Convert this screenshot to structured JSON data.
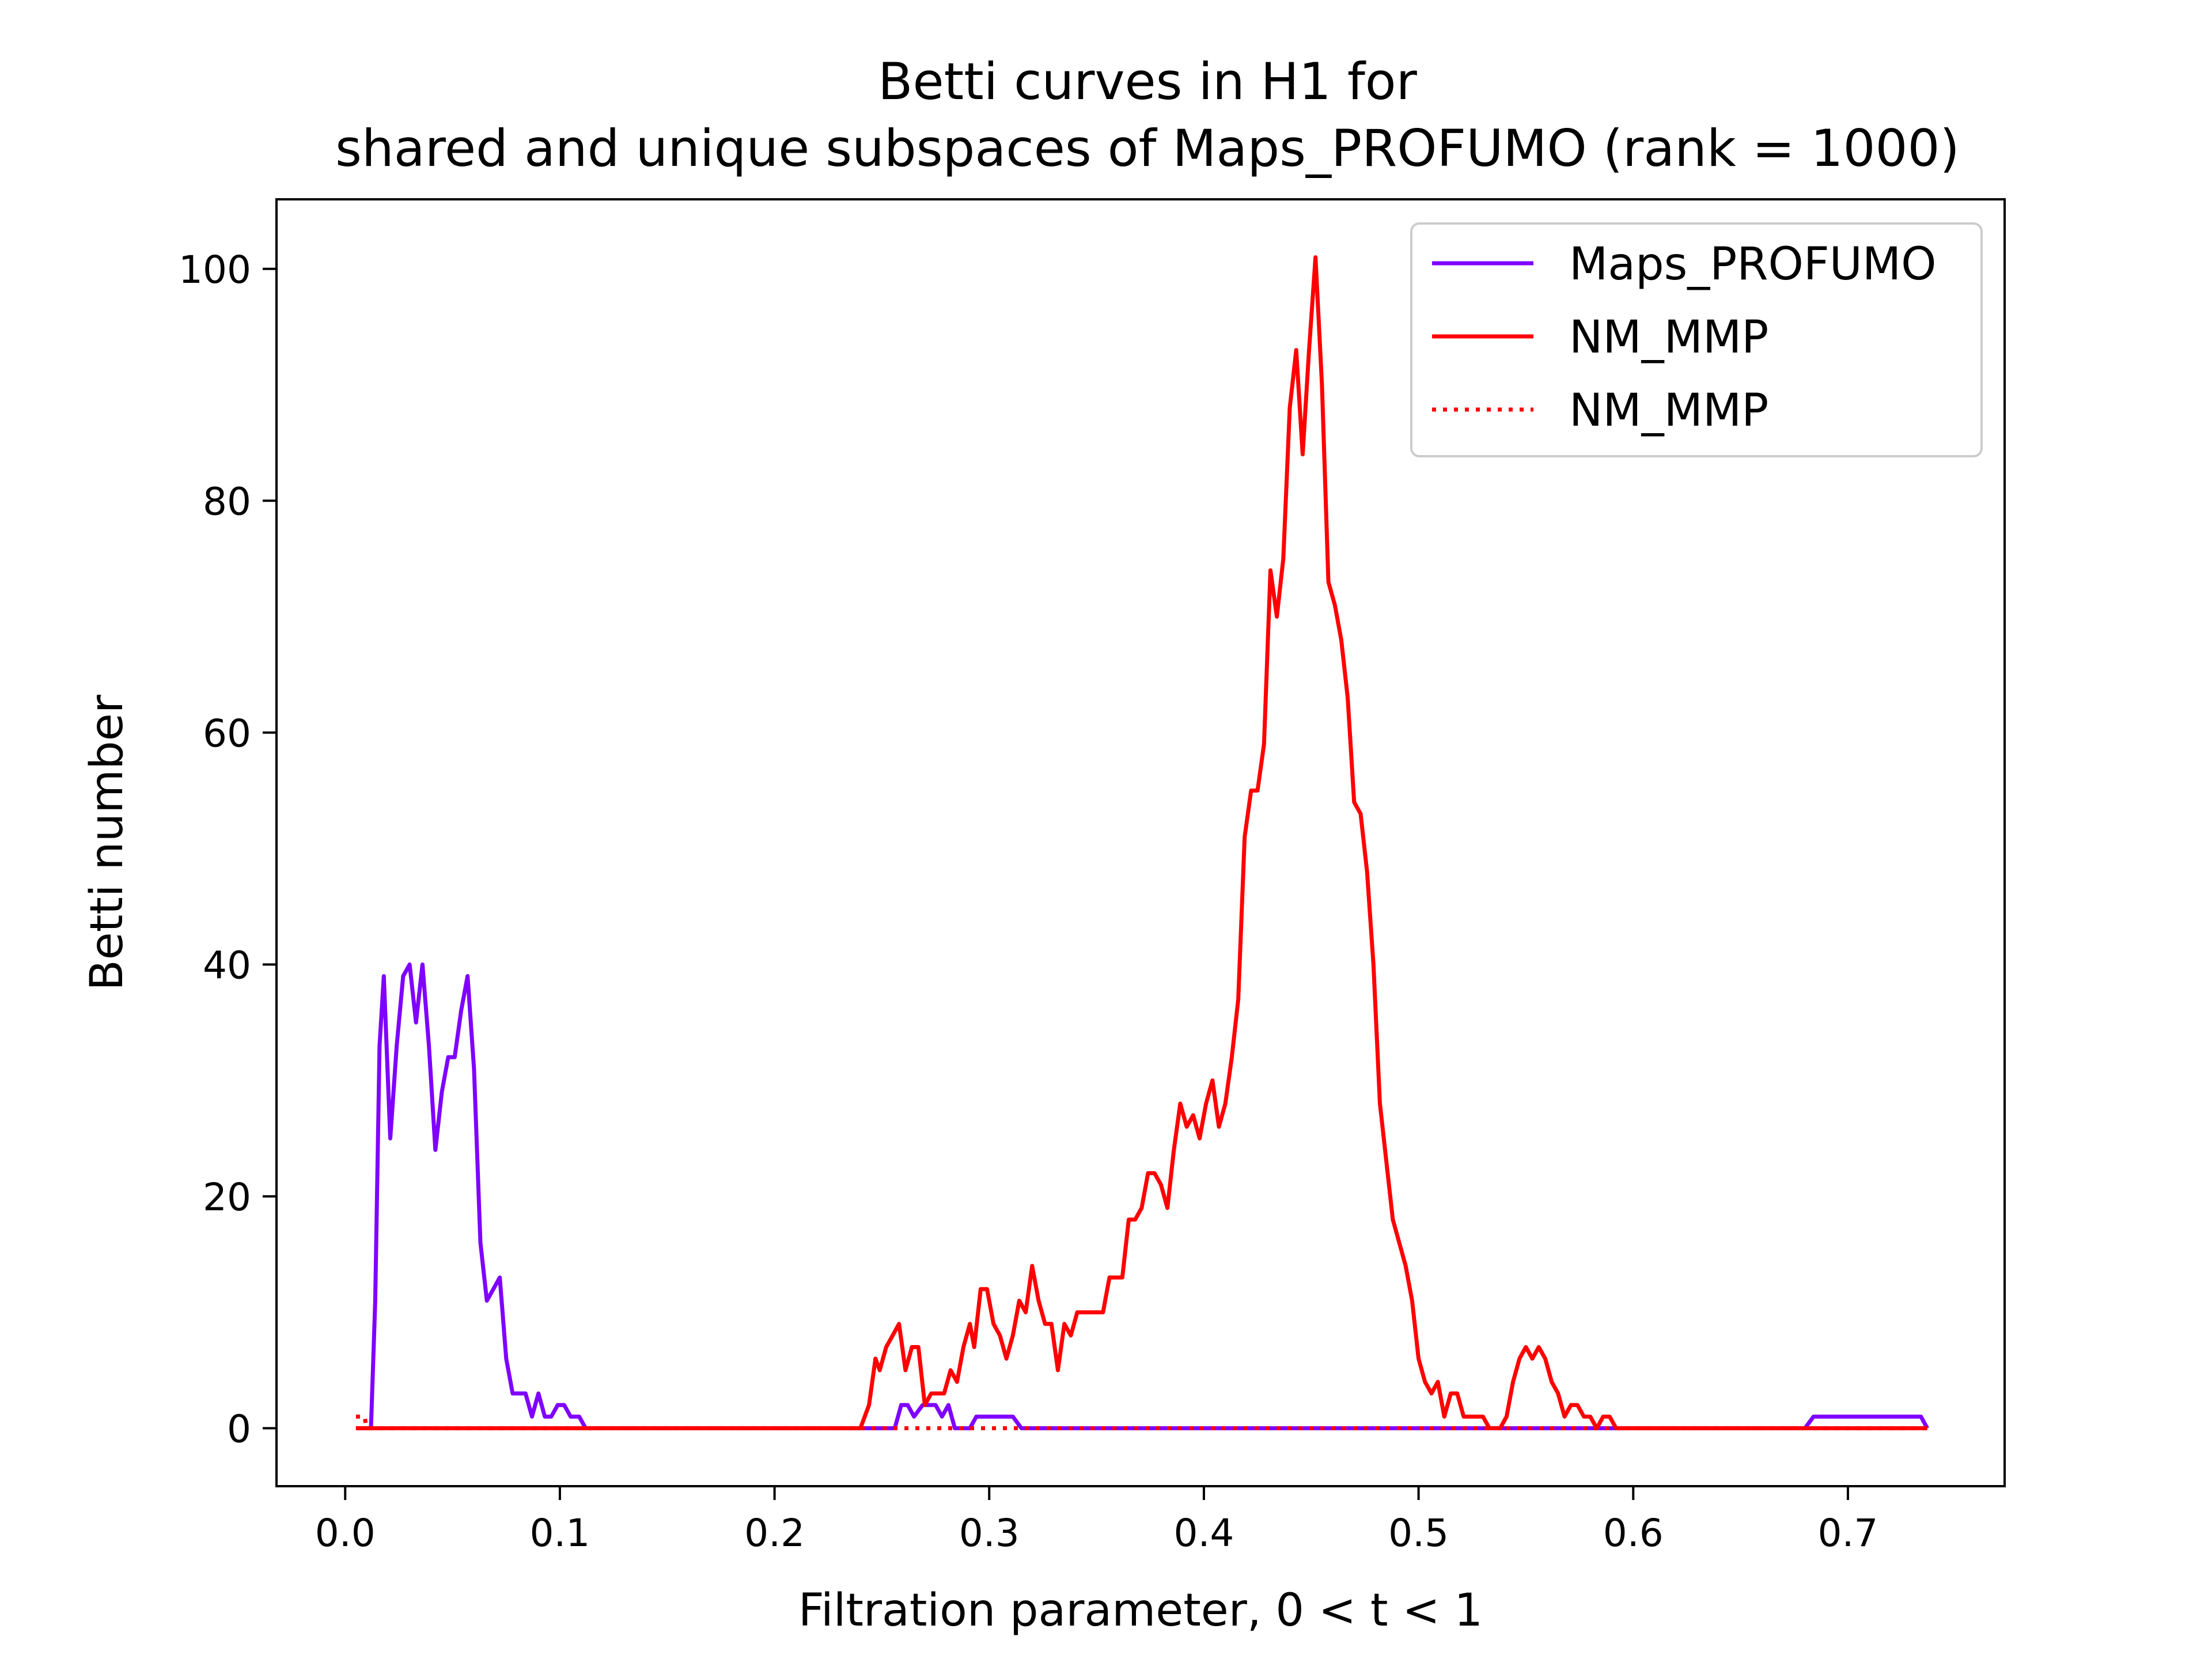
{
  "chart_data": {
    "type": "line",
    "title_line1": "Betti curves in H1 for",
    "title_line2": "shared and unique subspaces of Maps_PROFUMO (rank = 1000)",
    "xlabel": "Filtration parameter, 0 < t < 1",
    "ylabel": "Betti number",
    "xlim": [
      -0.032,
      0.773
    ],
    "ylim": [
      -5,
      106
    ],
    "xticks": [
      {
        "value": 0.0,
        "label": "0.0"
      },
      {
        "value": 0.1,
        "label": "0.1"
      },
      {
        "value": 0.2,
        "label": "0.2"
      },
      {
        "value": 0.3,
        "label": "0.3"
      },
      {
        "value": 0.4,
        "label": "0.4"
      },
      {
        "value": 0.5,
        "label": "0.5"
      },
      {
        "value": 0.6,
        "label": "0.6"
      },
      {
        "value": 0.7,
        "label": "0.7"
      }
    ],
    "yticks": [
      {
        "value": 0,
        "label": "0"
      },
      {
        "value": 20,
        "label": "20"
      },
      {
        "value": 40,
        "label": "40"
      },
      {
        "value": 60,
        "label": "60"
      },
      {
        "value": 80,
        "label": "80"
      },
      {
        "value": 100,
        "label": "100"
      }
    ],
    "grid": false,
    "legend_position": "top-right",
    "series": [
      {
        "name": "Maps_PROFUMO",
        "color": "#7f00ff",
        "style": "solid",
        "points": [
          [
            0.005,
            0
          ],
          [
            0.01,
            0
          ],
          [
            0.012,
            0
          ],
          [
            0.014,
            11
          ],
          [
            0.016,
            33
          ],
          [
            0.018,
            39
          ],
          [
            0.021,
            25
          ],
          [
            0.024,
            33
          ],
          [
            0.027,
            39
          ],
          [
            0.03,
            40
          ],
          [
            0.033,
            35
          ],
          [
            0.036,
            40
          ],
          [
            0.039,
            33
          ],
          [
            0.042,
            24
          ],
          [
            0.045,
            29
          ],
          [
            0.048,
            32
          ],
          [
            0.051,
            32
          ],
          [
            0.054,
            36
          ],
          [
            0.057,
            39
          ],
          [
            0.06,
            31
          ],
          [
            0.063,
            16
          ],
          [
            0.066,
            11
          ],
          [
            0.069,
            12
          ],
          [
            0.072,
            13
          ],
          [
            0.075,
            6
          ],
          [
            0.078,
            3
          ],
          [
            0.081,
            3
          ],
          [
            0.084,
            3
          ],
          [
            0.087,
            1
          ],
          [
            0.09,
            3
          ],
          [
            0.093,
            1
          ],
          [
            0.096,
            1
          ],
          [
            0.099,
            2
          ],
          [
            0.102,
            2
          ],
          [
            0.105,
            1
          ],
          [
            0.109,
            1
          ],
          [
            0.112,
            0
          ],
          [
            0.115,
            0
          ],
          [
            0.25,
            0
          ],
          [
            0.256,
            0
          ],
          [
            0.259,
            2
          ],
          [
            0.262,
            2
          ],
          [
            0.265,
            1
          ],
          [
            0.269,
            2
          ],
          [
            0.275,
            2
          ],
          [
            0.278,
            1
          ],
          [
            0.281,
            2
          ],
          [
            0.284,
            0
          ],
          [
            0.291,
            0
          ],
          [
            0.294,
            1
          ],
          [
            0.3,
            1
          ],
          [
            0.311,
            1
          ],
          [
            0.315,
            0
          ],
          [
            0.4,
            0
          ],
          [
            0.6,
            0
          ],
          [
            0.68,
            0
          ],
          [
            0.684,
            1
          ],
          [
            0.7,
            1
          ],
          [
            0.734,
            1
          ],
          [
            0.737,
            0
          ]
        ]
      },
      {
        "name": "NM_MMP",
        "color": "#ff0000",
        "style": "solid",
        "points": [
          [
            0.005,
            0
          ],
          [
            0.2,
            0
          ],
          [
            0.24,
            0
          ],
          [
            0.244,
            2
          ],
          [
            0.247,
            6
          ],
          [
            0.249,
            5
          ],
          [
            0.252,
            7
          ],
          [
            0.255,
            8
          ],
          [
            0.258,
            9
          ],
          [
            0.261,
            5
          ],
          [
            0.264,
            7
          ],
          [
            0.267,
            7
          ],
          [
            0.27,
            2
          ],
          [
            0.273,
            3
          ],
          [
            0.276,
            3
          ],
          [
            0.279,
            3
          ],
          [
            0.282,
            5
          ],
          [
            0.285,
            4
          ],
          [
            0.288,
            7
          ],
          [
            0.291,
            9
          ],
          [
            0.293,
            7
          ],
          [
            0.296,
            12
          ],
          [
            0.299,
            12
          ],
          [
            0.302,
            9
          ],
          [
            0.305,
            8
          ],
          [
            0.308,
            6
          ],
          [
            0.311,
            8
          ],
          [
            0.314,
            11
          ],
          [
            0.317,
            10
          ],
          [
            0.32,
            14
          ],
          [
            0.323,
            11
          ],
          [
            0.326,
            9
          ],
          [
            0.329,
            9
          ],
          [
            0.332,
            5
          ],
          [
            0.335,
            9
          ],
          [
            0.338,
            8
          ],
          [
            0.341,
            10
          ],
          [
            0.344,
            10
          ],
          [
            0.347,
            10
          ],
          [
            0.35,
            10
          ],
          [
            0.353,
            10
          ],
          [
            0.356,
            13
          ],
          [
            0.359,
            13
          ],
          [
            0.362,
            13
          ],
          [
            0.365,
            18
          ],
          [
            0.368,
            18
          ],
          [
            0.371,
            19
          ],
          [
            0.374,
            22
          ],
          [
            0.377,
            22
          ],
          [
            0.38,
            21
          ],
          [
            0.383,
            19
          ],
          [
            0.386,
            24
          ],
          [
            0.389,
            28
          ],
          [
            0.392,
            26
          ],
          [
            0.395,
            27
          ],
          [
            0.398,
            25
          ],
          [
            0.401,
            28
          ],
          [
            0.404,
            30
          ],
          [
            0.407,
            26
          ],
          [
            0.41,
            28
          ],
          [
            0.413,
            32
          ],
          [
            0.416,
            37
          ],
          [
            0.419,
            51
          ],
          [
            0.422,
            55
          ],
          [
            0.425,
            55
          ],
          [
            0.428,
            59
          ],
          [
            0.431,
            74
          ],
          [
            0.434,
            70
          ],
          [
            0.437,
            75
          ],
          [
            0.44,
            88
          ],
          [
            0.443,
            93
          ],
          [
            0.446,
            84
          ],
          [
            0.449,
            93
          ],
          [
            0.452,
            101
          ],
          [
            0.455,
            90
          ],
          [
            0.458,
            73
          ],
          [
            0.461,
            71
          ],
          [
            0.464,
            68
          ],
          [
            0.467,
            63
          ],
          [
            0.47,
            54
          ],
          [
            0.473,
            53
          ],
          [
            0.476,
            48
          ],
          [
            0.479,
            40
          ],
          [
            0.482,
            28
          ],
          [
            0.485,
            23
          ],
          [
            0.488,
            18
          ],
          [
            0.491,
            16
          ],
          [
            0.494,
            14
          ],
          [
            0.497,
            11
          ],
          [
            0.5,
            6
          ],
          [
            0.503,
            4
          ],
          [
            0.506,
            3
          ],
          [
            0.509,
            4
          ],
          [
            0.512,
            1
          ],
          [
            0.515,
            3
          ],
          [
            0.518,
            3
          ],
          [
            0.521,
            1
          ],
          [
            0.524,
            1
          ],
          [
            0.527,
            1
          ],
          [
            0.53,
            1
          ],
          [
            0.533,
            0
          ],
          [
            0.538,
            0
          ],
          [
            0.541,
            1
          ],
          [
            0.544,
            4
          ],
          [
            0.547,
            6
          ],
          [
            0.55,
            7
          ],
          [
            0.553,
            6
          ],
          [
            0.556,
            7
          ],
          [
            0.559,
            6
          ],
          [
            0.562,
            4
          ],
          [
            0.565,
            3
          ],
          [
            0.568,
            1
          ],
          [
            0.571,
            2
          ],
          [
            0.574,
            2
          ],
          [
            0.577,
            1
          ],
          [
            0.58,
            1
          ],
          [
            0.583,
            0
          ],
          [
            0.586,
            1
          ],
          [
            0.589,
            1
          ],
          [
            0.592,
            0
          ],
          [
            0.6,
            0
          ],
          [
            0.7,
            0
          ],
          [
            0.737,
            0
          ]
        ]
      },
      {
        "name": "NM_MMP",
        "color": "#ff0000",
        "style": "dotted",
        "points": [
          [
            0.005,
            1
          ],
          [
            0.009,
            1
          ],
          [
            0.01,
            0
          ],
          [
            0.737,
            0
          ]
        ]
      }
    ]
  }
}
